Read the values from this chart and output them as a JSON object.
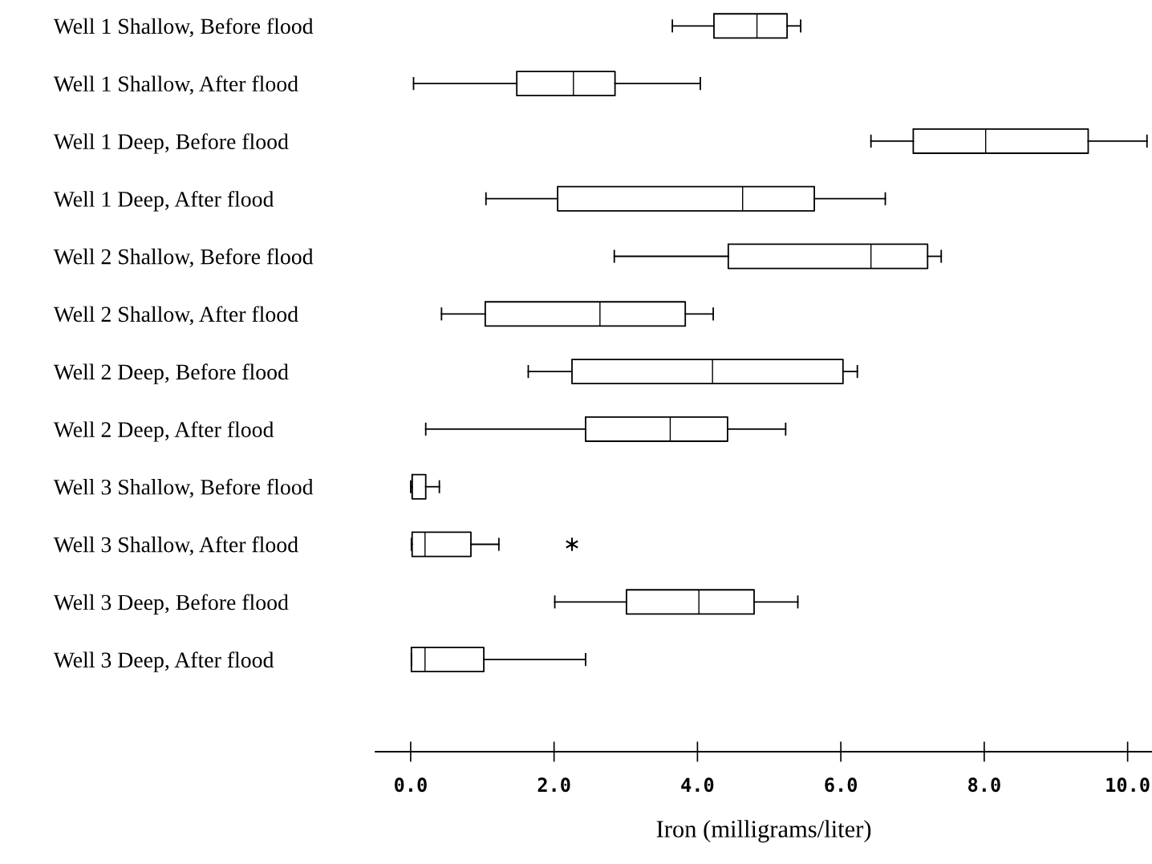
{
  "chart_data": {
    "type": "box",
    "xlabel": "Iron (milligrams/liter)",
    "orientation": "horizontal",
    "categories": [
      "Well 1 Shallow, Before flood",
      "Well 1 Shallow, After flood",
      "Well 1 Deep, Before flood",
      "Well 1 Deep, After flood",
      "Well 2 Shallow, Before flood",
      "Well 2 Shallow, After flood",
      "Well 2 Deep, Before flood",
      "Well 2 Deep, After flood",
      "Well 3 Shallow, Before flood",
      "Well 3 Shallow, After flood",
      "Well 3 Deep, Before flood",
      "Well 3 Deep, After flood"
    ],
    "boxes": [
      {
        "low": 3.65,
        "q1": 4.23,
        "median": 4.83,
        "q3": 5.25,
        "high": 5.44
      },
      {
        "low": 0.04,
        "q1": 1.48,
        "median": 2.27,
        "q3": 2.85,
        "high": 4.04
      },
      {
        "low": 6.42,
        "q1": 7.01,
        "median": 8.02,
        "q3": 9.45,
        "high": 10.27
      },
      {
        "low": 1.05,
        "q1": 2.05,
        "median": 4.63,
        "q3": 5.63,
        "high": 6.62
      },
      {
        "low": 2.84,
        "q1": 4.43,
        "median": 6.42,
        "q3": 7.21,
        "high": 7.4
      },
      {
        "low": 0.43,
        "q1": 1.04,
        "median": 2.64,
        "q3": 3.83,
        "high": 4.22
      },
      {
        "low": 1.64,
        "q1": 2.25,
        "median": 4.21,
        "q3": 6.03,
        "high": 6.23
      },
      {
        "low": 0.21,
        "q1": 2.44,
        "median": 3.62,
        "q3": 4.42,
        "high": 5.23
      },
      {
        "low": 0.0,
        "q1": 0.02,
        "median": 0.02,
        "q3": 0.21,
        "high": 0.4
      },
      {
        "low": 0.01,
        "q1": 0.02,
        "median": 0.2,
        "q3": 0.84,
        "high": 1.23,
        "outliers": [
          2.25
        ]
      },
      {
        "low": 2.01,
        "q1": 3.01,
        "median": 4.02,
        "q3": 4.79,
        "high": 5.4
      },
      {
        "low": 0.01,
        "q1": 0.01,
        "median": 0.2,
        "q3": 1.02,
        "high": 2.44
      }
    ],
    "xlim": [
      -0.49,
      10.34
    ],
    "xticks": [
      {
        "value": 0,
        "label": "0.0"
      },
      {
        "value": 2,
        "label": "2.0"
      },
      {
        "value": 4,
        "label": "4.0"
      },
      {
        "value": 6,
        "label": "6.0"
      },
      {
        "value": 8,
        "label": "8.0"
      },
      {
        "value": 10,
        "label": "10.0"
      }
    ],
    "grid": false,
    "legend": false
  }
}
